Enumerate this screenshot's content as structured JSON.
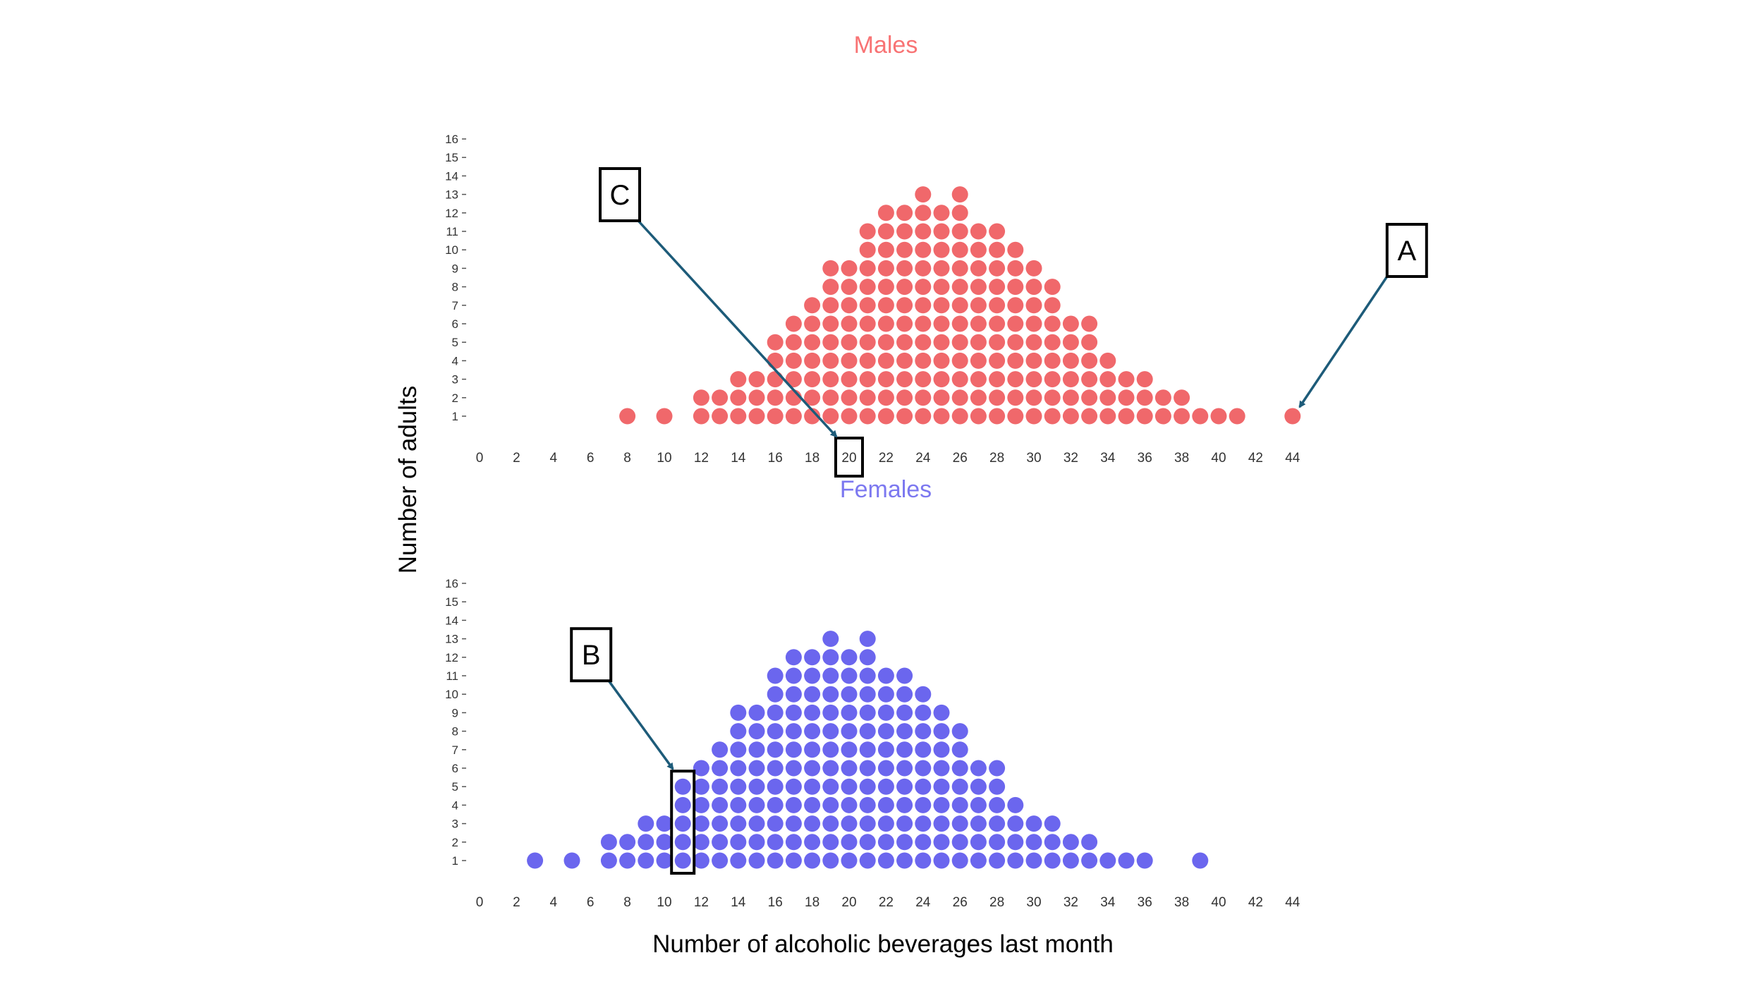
{
  "chart_data": [
    {
      "type": "dotplot",
      "title": "Males",
      "title_color": "#F87374",
      "dot_color": "#F0686B",
      "x_ticks": [
        0,
        2,
        4,
        6,
        8,
        10,
        12,
        14,
        16,
        18,
        20,
        22,
        24,
        26,
        28,
        30,
        32,
        34,
        36,
        38,
        40,
        42,
        44
      ],
      "y_ticks": [
        1,
        2,
        3,
        4,
        5,
        6,
        7,
        8,
        9,
        10,
        11,
        12,
        13,
        14,
        15,
        16
      ],
      "xlim": [
        0,
        44
      ],
      "ylim": [
        0,
        16
      ],
      "counts": [
        {
          "x": 8,
          "count": 1
        },
        {
          "x": 10,
          "count": 1
        },
        {
          "x": 12,
          "count": 2
        },
        {
          "x": 13,
          "count": 2
        },
        {
          "x": 14,
          "count": 3
        },
        {
          "x": 15,
          "count": 3
        },
        {
          "x": 16,
          "count": 5
        },
        {
          "x": 17,
          "count": 6
        },
        {
          "x": 18,
          "count": 7
        },
        {
          "x": 19,
          "count": 9
        },
        {
          "x": 20,
          "count": 9
        },
        {
          "x": 21,
          "count": 11
        },
        {
          "x": 22,
          "count": 12
        },
        {
          "x": 23,
          "count": 12
        },
        {
          "x": 24,
          "count": 13
        },
        {
          "x": 25,
          "count": 12
        },
        {
          "x": 26,
          "count": 13
        },
        {
          "x": 27,
          "count": 11
        },
        {
          "x": 28,
          "count": 11
        },
        {
          "x": 29,
          "count": 10
        },
        {
          "x": 30,
          "count": 9
        },
        {
          "x": 31,
          "count": 8
        },
        {
          "x": 32,
          "count": 6
        },
        {
          "x": 33,
          "count": 6
        },
        {
          "x": 34,
          "count": 4
        },
        {
          "x": 35,
          "count": 3
        },
        {
          "x": 36,
          "count": 3
        },
        {
          "x": 37,
          "count": 2
        },
        {
          "x": 38,
          "count": 2
        },
        {
          "x": 39,
          "count": 1
        },
        {
          "x": 40,
          "count": 1
        },
        {
          "x": 41,
          "count": 1
        },
        {
          "x": 44,
          "count": 1
        }
      ]
    },
    {
      "type": "dotplot",
      "title": "Females",
      "title_color": "#7C78F0",
      "dot_color": "#6B66EE",
      "x_ticks": [
        0,
        2,
        4,
        6,
        8,
        10,
        12,
        14,
        16,
        18,
        20,
        22,
        24,
        26,
        28,
        30,
        32,
        34,
        36,
        38,
        40,
        42,
        44
      ],
      "y_ticks": [
        1,
        2,
        3,
        4,
        5,
        6,
        7,
        8,
        9,
        10,
        11,
        12,
        13,
        14,
        15,
        16
      ],
      "xlim": [
        0,
        44
      ],
      "ylim": [
        0,
        16
      ],
      "counts": [
        {
          "x": 3,
          "count": 1
        },
        {
          "x": 5,
          "count": 1
        },
        {
          "x": 7,
          "count": 2
        },
        {
          "x": 8,
          "count": 2
        },
        {
          "x": 9,
          "count": 3
        },
        {
          "x": 10,
          "count": 3
        },
        {
          "x": 11,
          "count": 5
        },
        {
          "x": 12,
          "count": 6
        },
        {
          "x": 13,
          "count": 7
        },
        {
          "x": 14,
          "count": 9
        },
        {
          "x": 15,
          "count": 9
        },
        {
          "x": 16,
          "count": 11
        },
        {
          "x": 17,
          "count": 12
        },
        {
          "x": 18,
          "count": 12
        },
        {
          "x": 19,
          "count": 13
        },
        {
          "x": 20,
          "count": 12
        },
        {
          "x": 21,
          "count": 13
        },
        {
          "x": 22,
          "count": 11
        },
        {
          "x": 23,
          "count": 11
        },
        {
          "x": 24,
          "count": 10
        },
        {
          "x": 25,
          "count": 9
        },
        {
          "x": 26,
          "count": 8
        },
        {
          "x": 27,
          "count": 6
        },
        {
          "x": 28,
          "count": 6
        },
        {
          "x": 29,
          "count": 4
        },
        {
          "x": 30,
          "count": 3
        },
        {
          "x": 31,
          "count": 3
        },
        {
          "x": 32,
          "count": 2
        },
        {
          "x": 33,
          "count": 2
        },
        {
          "x": 34,
          "count": 1
        },
        {
          "x": 35,
          "count": 1
        },
        {
          "x": 36,
          "count": 1
        },
        {
          "x": 39,
          "count": 1
        }
      ]
    }
  ],
  "axes": {
    "ylabel": "Number of adults",
    "xlabel": "Number of alcoholic beverages last month"
  },
  "callouts": [
    {
      "label": "A",
      "panel": 0,
      "target_x": 44,
      "target_y": 1,
      "target": "dot"
    },
    {
      "label": "C",
      "panel": 0,
      "target_x": 20,
      "target": "x-tick-box"
    },
    {
      "label": "B",
      "panel": 1,
      "target_x": 11,
      "target_y_range": [
        1,
        5
      ],
      "target": "column-box"
    }
  ],
  "arrow_color": "#1D5B79"
}
